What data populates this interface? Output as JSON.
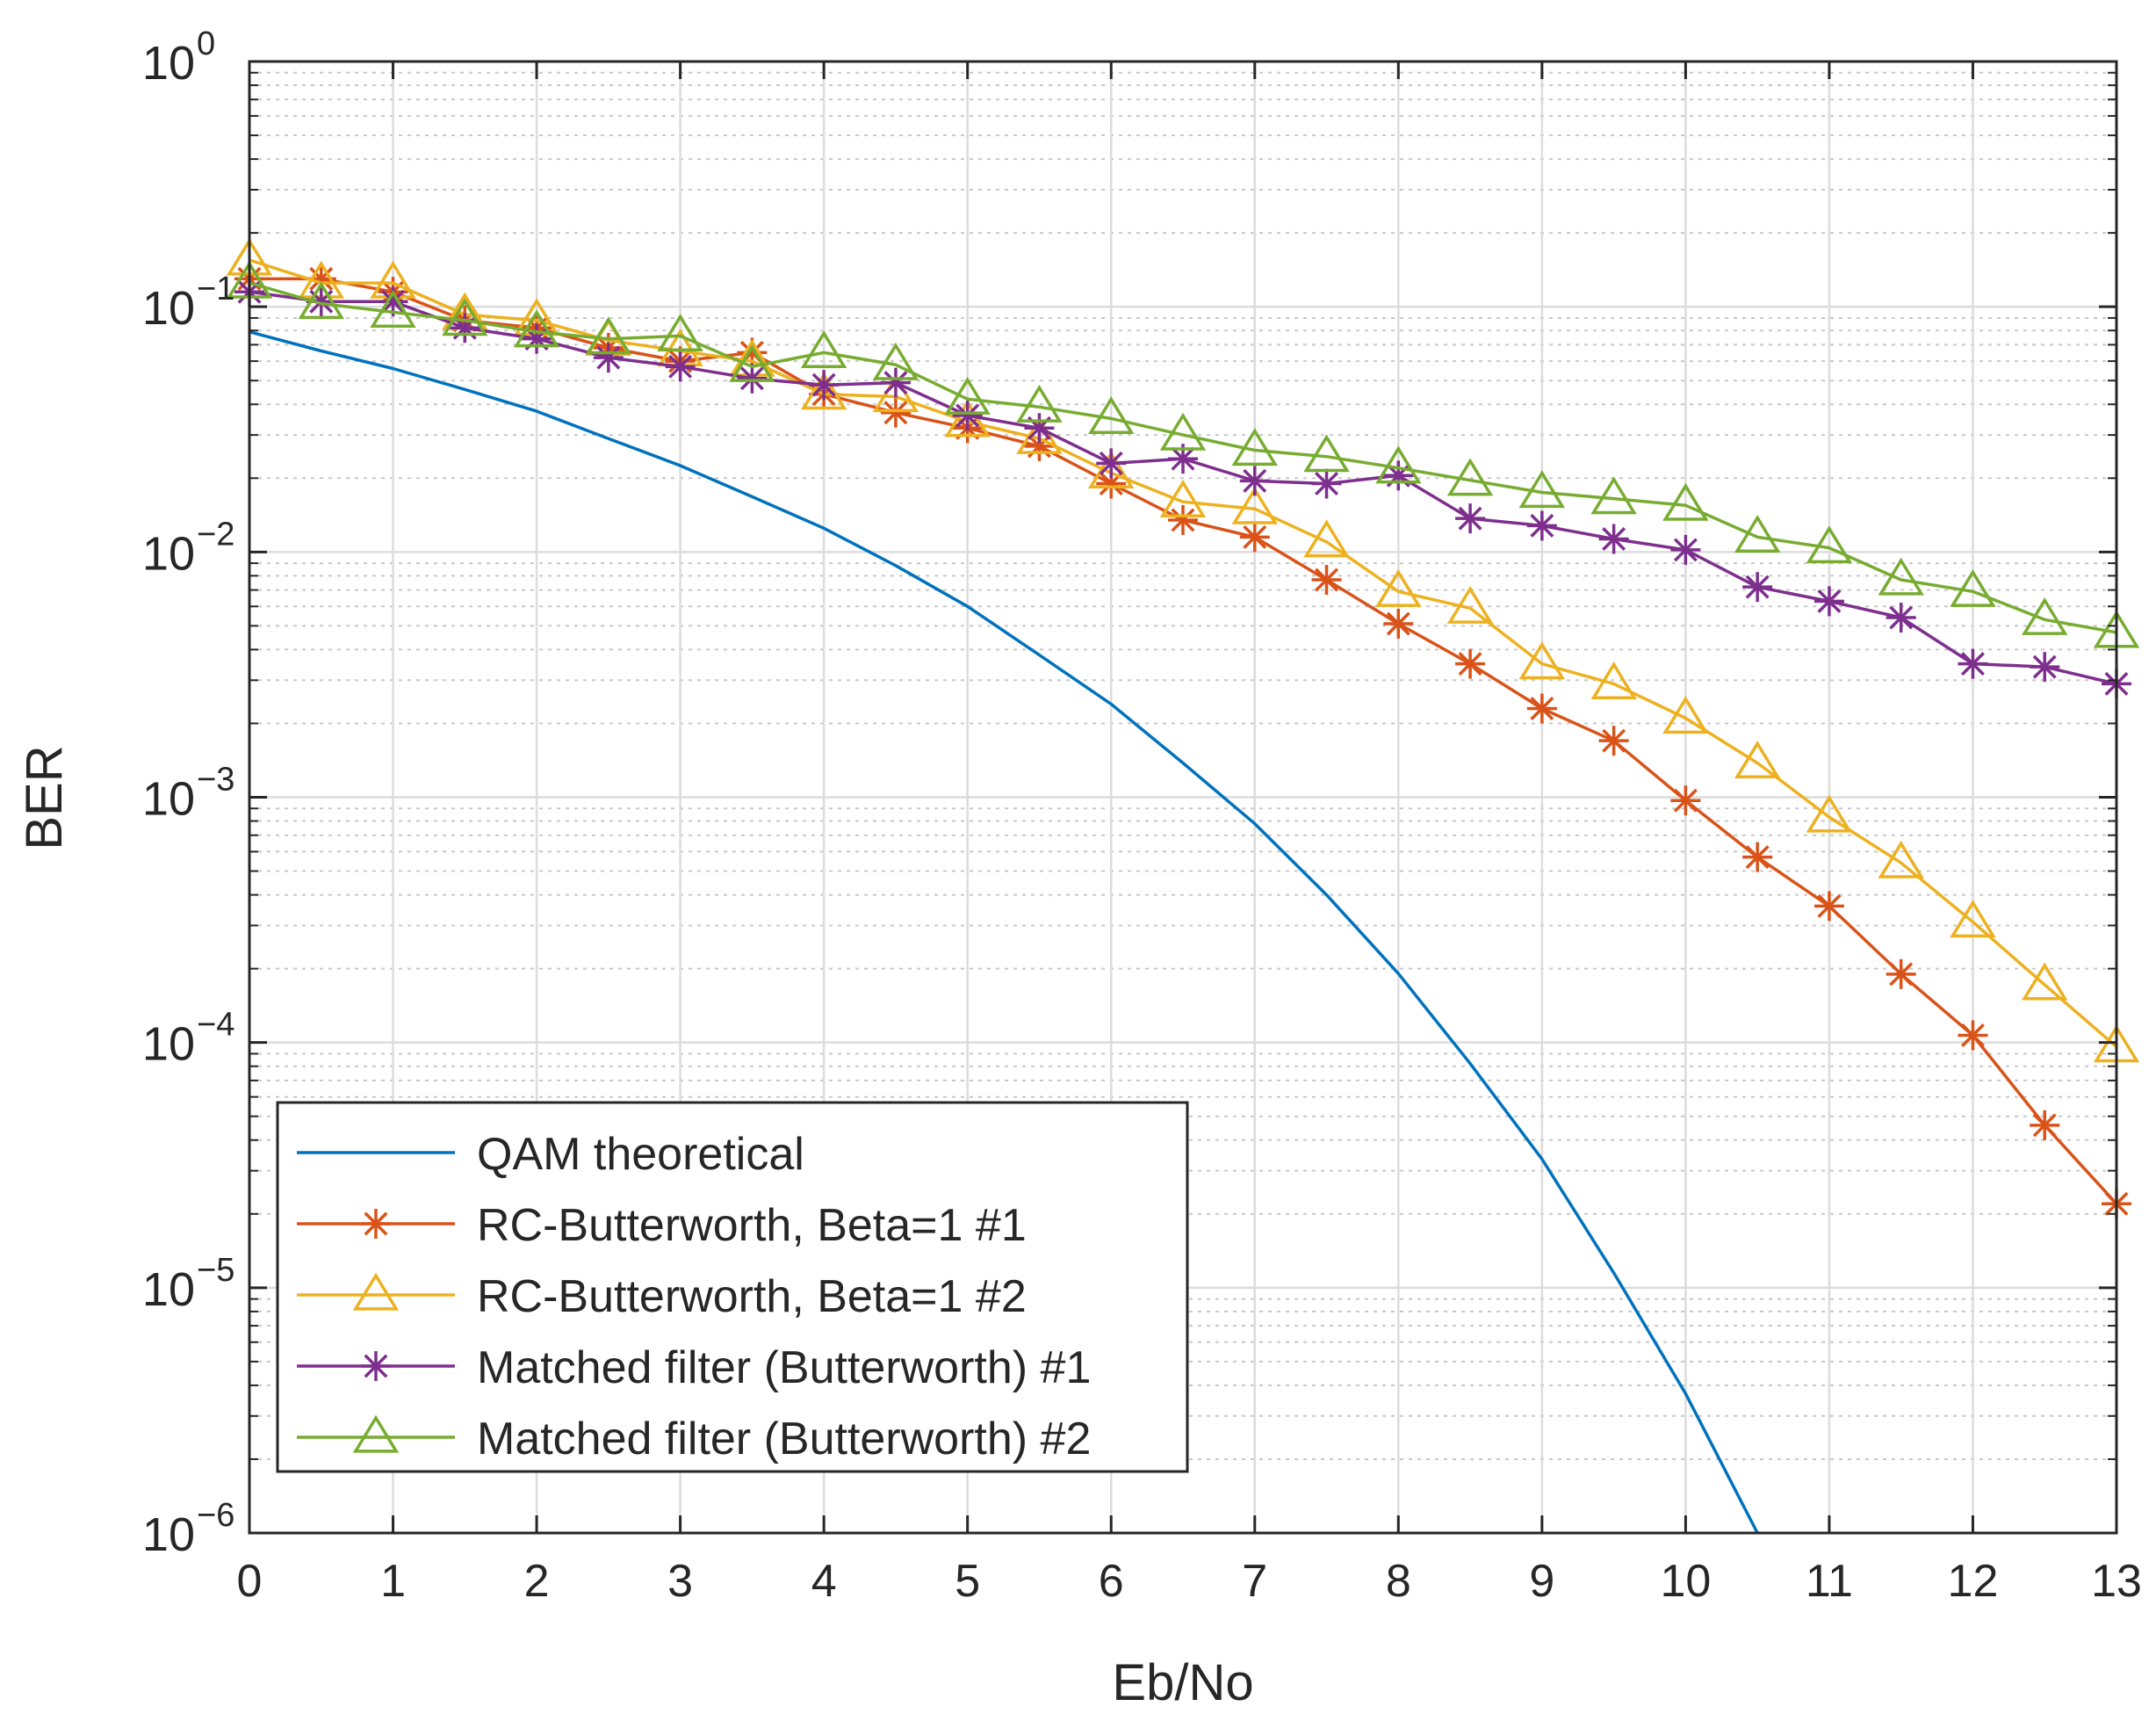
{
  "chart_data": {
    "type": "line",
    "title": "",
    "xlabel": "Eb/No",
    "ylabel": "BER",
    "xlim": [
      0,
      13
    ],
    "ylim": [
      1e-06,
      1
    ],
    "yscale": "log",
    "grid": true,
    "minor_grid": true,
    "legend_position": "bottom-left",
    "xticks": [
      0,
      1,
      2,
      3,
      4,
      5,
      6,
      7,
      8,
      9,
      10,
      11,
      12,
      13
    ],
    "xtick_labels": [
      "0",
      "1",
      "2",
      "3",
      "4",
      "5",
      "6",
      "7",
      "8",
      "9",
      "10",
      "11",
      "12",
      "13"
    ],
    "yticks": [
      {
        "value": 1,
        "base": "10",
        "exp": "0"
      },
      {
        "value": 0.1,
        "base": "10",
        "exp": "−1"
      },
      {
        "value": 0.01,
        "base": "10",
        "exp": "−2"
      },
      {
        "value": 0.001,
        "base": "10",
        "exp": "−3"
      },
      {
        "value": 0.0001,
        "base": "10",
        "exp": "−4"
      },
      {
        "value": 1e-05,
        "base": "10",
        "exp": "−5"
      },
      {
        "value": 1e-06,
        "base": "10",
        "exp": "−6"
      }
    ],
    "series": [
      {
        "name": "QAM theoretical",
        "color": "#0072BD",
        "marker": "none",
        "x": [
          0,
          0.5,
          1,
          1.5,
          2,
          2.5,
          3,
          3.5,
          4,
          4.5,
          5,
          5.5,
          6,
          6.5,
          7,
          7.5,
          8,
          8.5,
          9,
          9.5,
          10,
          10.5
        ],
        "y": [
          0.079,
          0.066,
          0.056,
          0.046,
          0.0375,
          0.029,
          0.0225,
          0.0168,
          0.0125,
          0.0088,
          0.006,
          0.0038,
          0.0024,
          0.00138,
          0.00078,
          0.0004,
          0.000191,
          8.2e-05,
          3.35e-05,
          1.15e-05,
          3.7e-06,
          1e-06
        ]
      },
      {
        "name": "RC-Butterworth, Beta=1 #1",
        "color": "#D95319",
        "marker": "asterisk",
        "x": [
          0,
          0.5,
          1,
          1.5,
          2,
          2.5,
          3,
          3.5,
          4,
          4.5,
          5,
          5.5,
          6,
          6.5,
          7,
          7.5,
          8,
          8.5,
          9,
          9.5,
          10,
          10.5,
          11,
          11.5,
          12,
          12.5,
          13
        ],
        "y": [
          0.13,
          0.13,
          0.115,
          0.088,
          0.082,
          0.068,
          0.06,
          0.065,
          0.044,
          0.037,
          0.032,
          0.027,
          0.019,
          0.0135,
          0.0115,
          0.0077,
          0.0051,
          0.0035,
          0.0023,
          0.0017,
          0.00097,
          0.00057,
          0.00036,
          0.00019,
          0.000107,
          4.6e-05,
          2.2e-05
        ]
      },
      {
        "name": "RC-Butterworth, Beta=1 #2",
        "color": "#EDB120",
        "marker": "triangle",
        "x": [
          0,
          0.5,
          1,
          1.5,
          2,
          2.5,
          3,
          3.5,
          4,
          4.5,
          5,
          5.5,
          6,
          6.5,
          7,
          7.5,
          8,
          8.5,
          9,
          9.5,
          10,
          10.5,
          11,
          11.5,
          12,
          12.5,
          13
        ],
        "y": [
          0.155,
          0.125,
          0.125,
          0.093,
          0.088,
          0.073,
          0.066,
          0.06,
          0.044,
          0.043,
          0.034,
          0.029,
          0.021,
          0.016,
          0.015,
          0.011,
          0.0069,
          0.0059,
          0.0035,
          0.0029,
          0.0021,
          0.00138,
          0.00083,
          0.00054,
          0.00031,
          0.000172,
          9.6e-05
        ]
      },
      {
        "name": "Matched filter (Butterworth) #1",
        "color": "#7E2F8E",
        "marker": "asterisk",
        "x": [
          0,
          0.5,
          1,
          1.5,
          2,
          2.5,
          3,
          3.5,
          4,
          4.5,
          5,
          5.5,
          6,
          6.5,
          7,
          7.5,
          8,
          8.5,
          9,
          9.5,
          10,
          10.5,
          11,
          11.5,
          12,
          12.5,
          13
        ],
        "y": [
          0.115,
          0.105,
          0.105,
          0.082,
          0.074,
          0.062,
          0.057,
          0.051,
          0.048,
          0.049,
          0.036,
          0.032,
          0.023,
          0.024,
          0.0195,
          0.019,
          0.0205,
          0.0137,
          0.0128,
          0.0113,
          0.0102,
          0.0072,
          0.0063,
          0.0054,
          0.0035,
          0.0034,
          0.0029
        ]
      },
      {
        "name": "Matched filter (Butterworth) #2",
        "color": "#77AC30",
        "marker": "triangle",
        "x": [
          0,
          0.5,
          1,
          1.5,
          2,
          2.5,
          3,
          3.5,
          4,
          4.5,
          5,
          5.5,
          6,
          6.5,
          7,
          7.5,
          8,
          8.5,
          9,
          9.5,
          10,
          10.5,
          11,
          11.5,
          12,
          12.5,
          13
        ],
        "y": [
          0.125,
          0.103,
          0.095,
          0.088,
          0.079,
          0.074,
          0.076,
          0.057,
          0.065,
          0.058,
          0.042,
          0.039,
          0.035,
          0.03,
          0.026,
          0.0245,
          0.022,
          0.0196,
          0.0175,
          0.0165,
          0.0155,
          0.0115,
          0.0104,
          0.0077,
          0.0069,
          0.0053,
          0.0047
        ]
      }
    ]
  }
}
